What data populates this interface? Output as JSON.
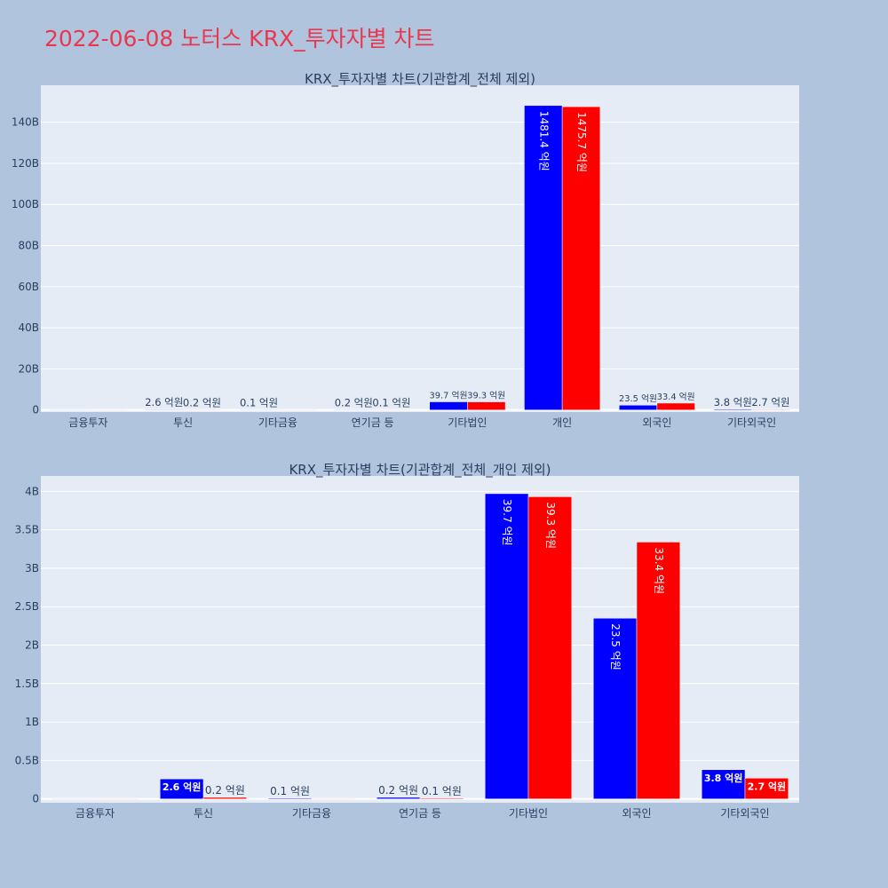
{
  "page": {
    "title": "2022-06-08 노터스 KRX_투자자별 차트",
    "background": "#b0c4de",
    "title_color": "#e8384f",
    "plot_background": "#e5ecf6",
    "buy_color": "#0000ff",
    "sell_color": "#ff0000"
  },
  "chart_data": [
    {
      "type": "bar",
      "title": "KRX_투자자별 차트(기관합계_전체 제외)",
      "categories": [
        "금융투자",
        "투신",
        "기타금융",
        "연기금 등",
        "기타법인",
        "개인",
        "외국인",
        "기타외국인"
      ],
      "series": [
        {
          "color": "#0000ff",
          "values": [
            0,
            0.26,
            0.01,
            0.02,
            3.97,
            148.14,
            2.35,
            0.38
          ],
          "labels": [
            "",
            "2.6 억원",
            "0.1 억원",
            "0.2 억원",
            "39.7 억원",
            "1481.4 억원",
            "23.5 억원",
            "3.8 억원"
          ]
        },
        {
          "color": "#ff0000",
          "values": [
            0,
            0.02,
            0,
            0.01,
            3.93,
            147.57,
            3.34,
            0.27
          ],
          "labels": [
            "",
            "0.2 억원",
            "",
            "0.1 억원",
            "39.3 억원",
            "1475.7 억원",
            "33.4 억원",
            "2.7 억원"
          ]
        }
      ],
      "yticks": [
        0,
        20,
        40,
        60,
        80,
        100,
        120,
        140
      ],
      "ytick_labels": [
        "0",
        "20B",
        "40B",
        "60B",
        "80B",
        "100B",
        "120B",
        "140B"
      ],
      "ylim": [
        -1,
        158
      ],
      "grid": true
    },
    {
      "type": "bar",
      "title": "KRX_투자자별 차트(기관합계_전체_개인 제외)",
      "categories": [
        "금융투자",
        "투신",
        "기타금융",
        "연기금 등",
        "기타법인",
        "외국인",
        "기타외국인"
      ],
      "series": [
        {
          "color": "#0000ff",
          "values": [
            0,
            0.26,
            0.01,
            0.02,
            3.97,
            2.35,
            0.38
          ],
          "labels": [
            "",
            "2.6 억원",
            "0.1 억원",
            "0.2 억원",
            "39.7 억원",
            "23.5 억원",
            "3.8 억원"
          ]
        },
        {
          "color": "#ff0000",
          "values": [
            0,
            0.02,
            0,
            0.01,
            3.93,
            3.34,
            0.27
          ],
          "labels": [
            "",
            "0.2 억원",
            "",
            "0.1 억원",
            "39.3 억원",
            "33.4 억원",
            "2.7 억원"
          ]
        }
      ],
      "yticks": [
        0,
        0.5,
        1,
        1.5,
        2,
        2.5,
        3,
        3.5,
        4
      ],
      "ytick_labels": [
        "0",
        "0.5B",
        "1B",
        "1.5B",
        "2B",
        "2.5B",
        "3B",
        "3.5B",
        "4B"
      ],
      "ylim": [
        -0.05,
        4.2
      ],
      "grid": true
    }
  ]
}
